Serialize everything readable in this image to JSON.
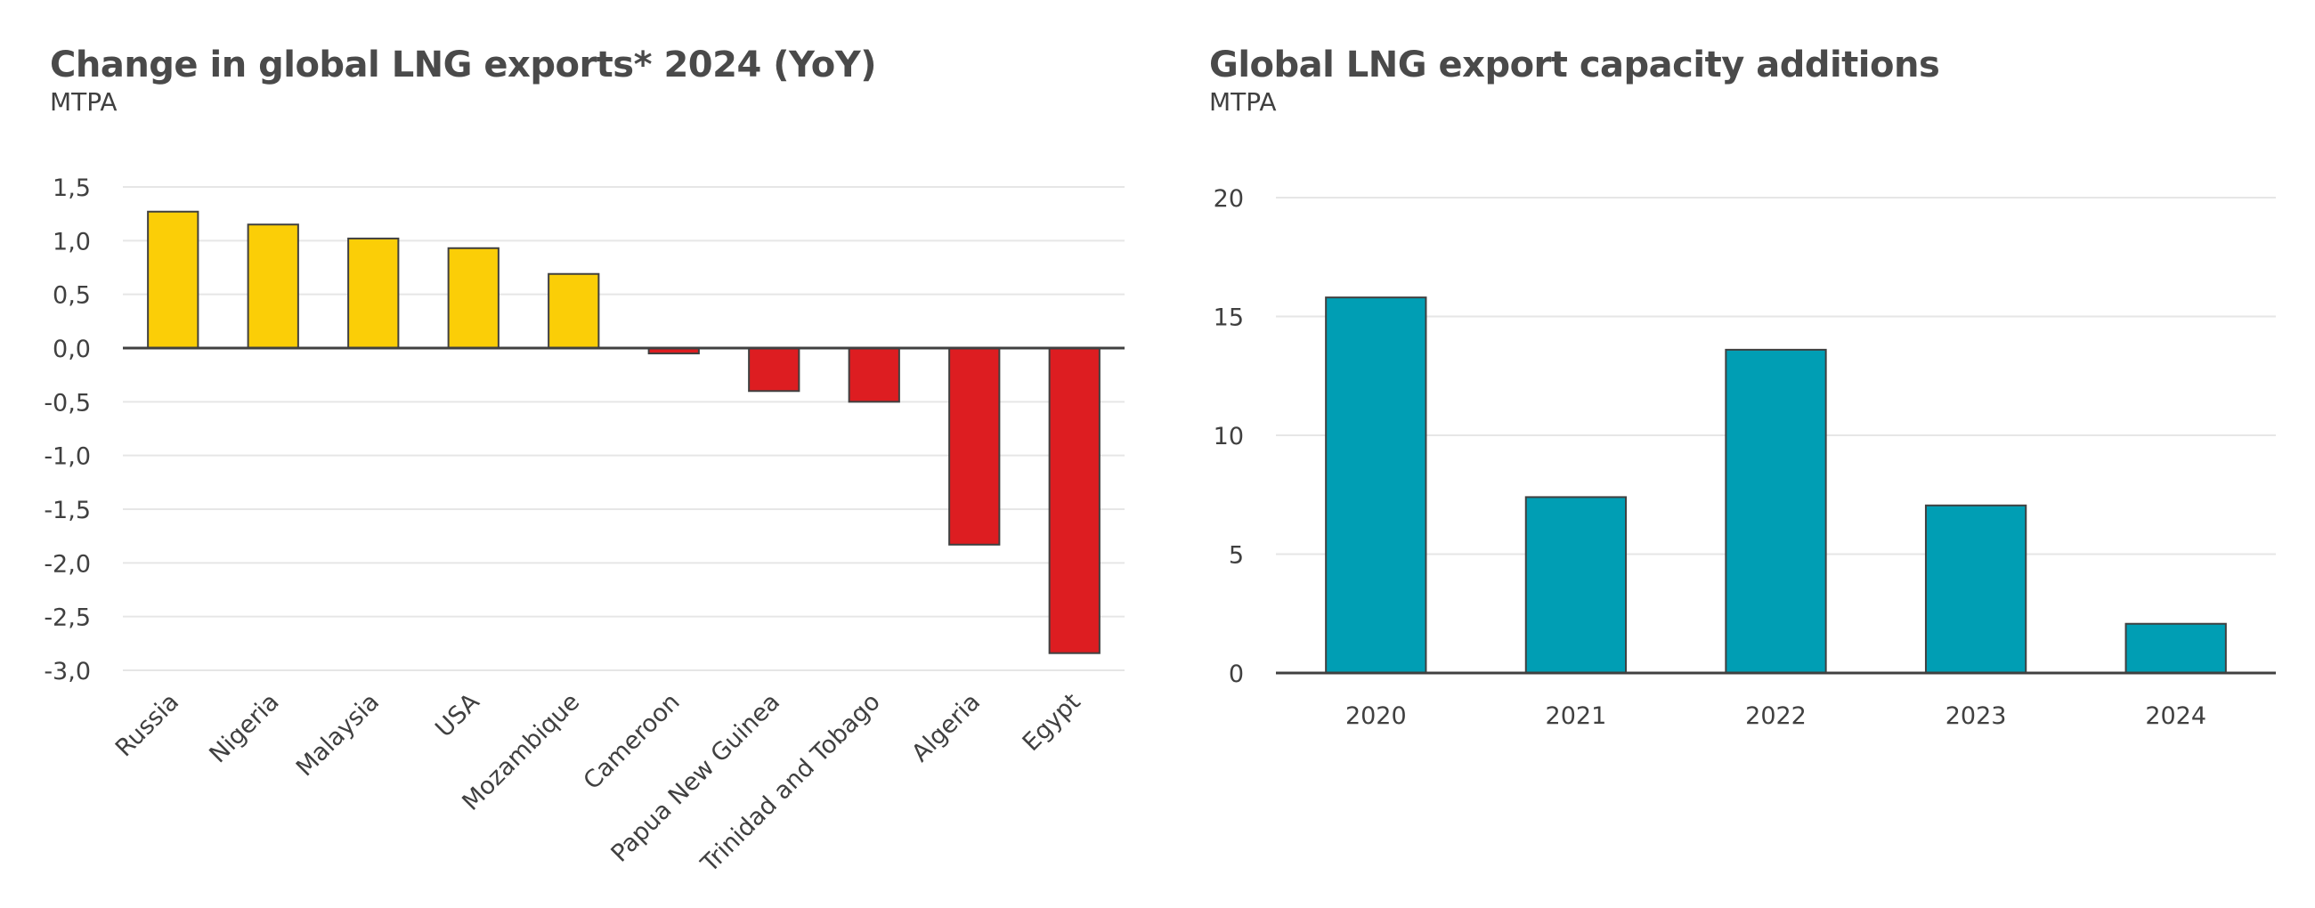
{
  "charts": [
    {
      "title": "Change in global LNG exports* 2024 (YoY)",
      "unit": "MTPA"
    },
    {
      "title": "Global LNG export capacity additions",
      "unit": "MTPA"
    }
  ],
  "chart_data": [
    {
      "type": "bar",
      "title": "Change in global LNG exports* 2024 (YoY)",
      "subtitle": "MTPA",
      "xlabel": "",
      "ylabel": "MTPA",
      "categories": [
        "Russia",
        "Nigeria",
        "Malaysia",
        "USA",
        "Mozambique",
        "Cameroon",
        "Papua New Guinea",
        "Trinidad and Tobago",
        "Algeria",
        "Egypt"
      ],
      "values": [
        1.27,
        1.15,
        1.02,
        0.93,
        0.69,
        -0.05,
        -0.4,
        -0.5,
        -1.83,
        -2.84
      ],
      "ylim": [
        -3.0,
        1.5
      ],
      "yticks": [
        1.5,
        1.0,
        0.5,
        0.0,
        -0.5,
        -1.0,
        -1.5,
        -2.0,
        -2.5,
        -3.0
      ],
      "ytick_labels": [
        "1,5",
        "1,0",
        "0,5",
        "0,0",
        "-0,5",
        "-1,0",
        "-1,5",
        "-2,0",
        "-2,5",
        "-3,0"
      ],
      "grid": true,
      "xtick_rotation": -45,
      "colors": {
        "positive": "#FBCE07",
        "negative": "#DD1D21",
        "outline": "#404040",
        "grid": "#E6E6E6"
      }
    },
    {
      "type": "bar",
      "title": "Global LNG export capacity additions",
      "subtitle": "MTPA",
      "xlabel": "",
      "ylabel": "MTPA",
      "categories": [
        "2020",
        "2021",
        "2022",
        "2023",
        "2024"
      ],
      "values": [
        15.8,
        7.4,
        13.6,
        7.05,
        2.07
      ],
      "ylim": [
        0,
        20
      ],
      "yticks": [
        20,
        15,
        10,
        5,
        0
      ],
      "ytick_labels": [
        "20",
        "15",
        "10",
        "5",
        "0"
      ],
      "grid": true,
      "colors": {
        "bar": "#009EB4",
        "outline": "#404040",
        "grid": "#E6E6E6"
      }
    }
  ]
}
